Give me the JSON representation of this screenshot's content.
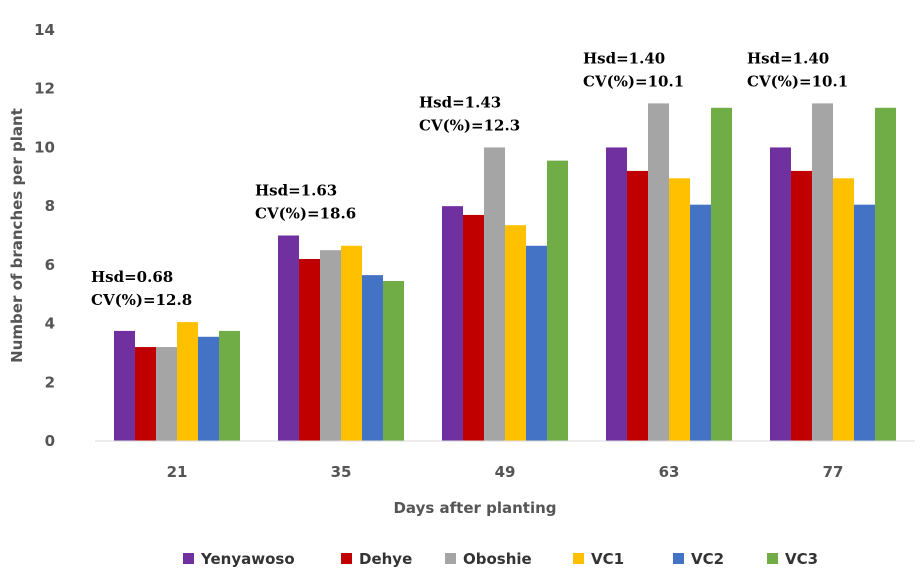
{
  "chart_data": {
    "type": "bar",
    "xlabel": "Days after planting",
    "ylabel": "Number of branches per plant",
    "ylim": [
      0,
      14
    ],
    "yticks": [
      0,
      2,
      4,
      6,
      8,
      10,
      12,
      14
    ],
    "categories": [
      "21",
      "35",
      "49",
      "63",
      "77"
    ],
    "grid": false,
    "legend_position": "bottom",
    "series": [
      {
        "name": "Yenyawoso",
        "color": "#7030A0",
        "values": [
          3.75,
          7.0,
          8.0,
          10.0,
          10.0
        ]
      },
      {
        "name": "Dehye",
        "color": "#C00000",
        "values": [
          3.2,
          6.2,
          7.7,
          9.2,
          9.2
        ]
      },
      {
        "name": "Oboshie",
        "color": "#A5A5A5",
        "values": [
          3.2,
          6.5,
          10.0,
          11.5,
          11.5
        ]
      },
      {
        "name": "VC1",
        "color": "#FFC000",
        "values": [
          4.05,
          6.65,
          7.35,
          8.95,
          8.95
        ]
      },
      {
        "name": "VC2",
        "color": "#4472C4",
        "values": [
          3.55,
          5.65,
          6.65,
          8.05,
          8.05
        ]
      },
      {
        "name": "VC3",
        "color": "#70AD47",
        "values": [
          3.75,
          5.45,
          9.55,
          11.35,
          11.35
        ]
      }
    ],
    "annotations": [
      {
        "lines": [
          "Hsd=0.68",
          "CV(%)=12.8"
        ],
        "category": "21"
      },
      {
        "lines": [
          "Hsd=1.63",
          "CV(%)=18.6"
        ],
        "category": "35"
      },
      {
        "lines": [
          "Hsd=1.43",
          "CV(%)=12.3"
        ],
        "category": "49"
      },
      {
        "lines": [
          "Hsd=1.40",
          "CV(%)=10.1"
        ],
        "category": "63"
      },
      {
        "lines": [
          "Hsd=1.40",
          "CV(%)=10.1"
        ],
        "category": "77"
      }
    ]
  }
}
